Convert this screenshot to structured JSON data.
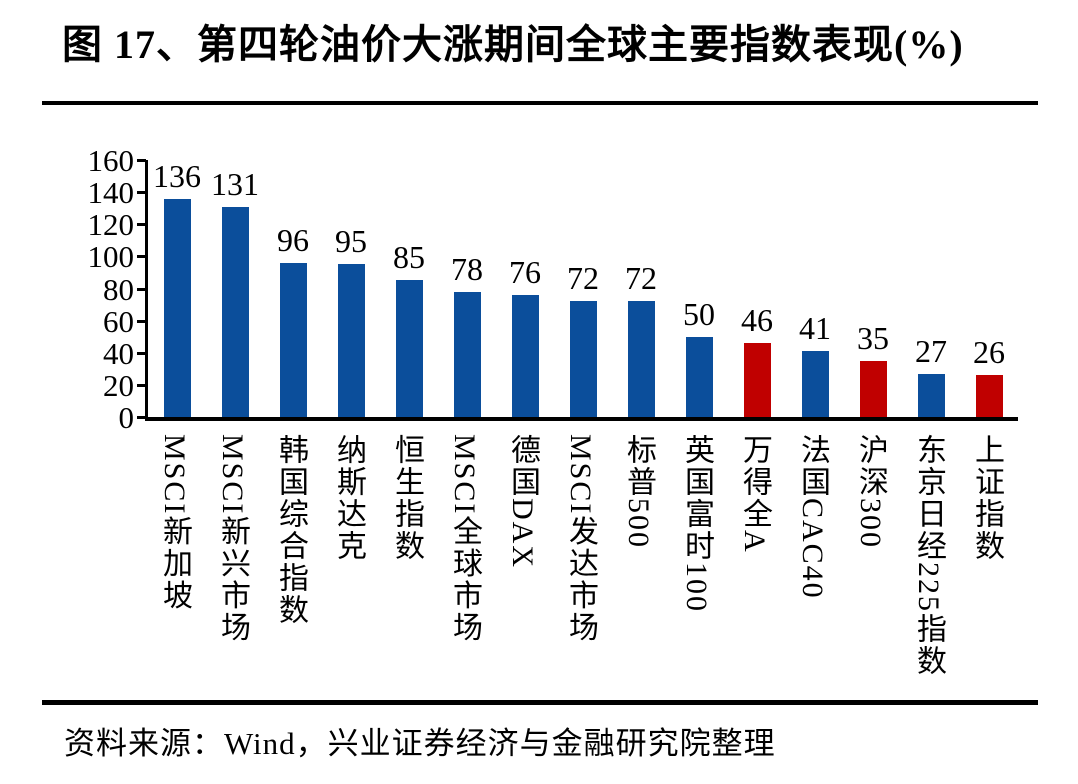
{
  "title": "图 17、第四轮油价大涨期间全球主要指数表现(%)",
  "source": "资料来源：Wind，兴业证券经济与金融研究院整理",
  "colors": {
    "bar_blue": "#0B4E9B",
    "bar_red": "#C00000",
    "rule_black": "#000000"
  },
  "chart_data": {
    "type": "bar",
    "title": "第四轮油价大涨期间全球主要指数表现(%)",
    "categories": [
      "MSCI新加坡",
      "MSCI新兴市场",
      "韩国综合指数",
      "纳斯达克",
      "恒生指数",
      "MSCI全球市场",
      "德国DAX",
      "MSCI发达市场",
      "标普500",
      "英国富时100",
      "万得全A",
      "法国CAC40",
      "沪深300",
      "东京日经225指数",
      "上证指数"
    ],
    "values": [
      136,
      131,
      96,
      95,
      85,
      78,
      76,
      72,
      72,
      50,
      46,
      41,
      35,
      27,
      26
    ],
    "bar_colors": [
      "#0B4E9B",
      "#0B4E9B",
      "#0B4E9B",
      "#0B4E9B",
      "#0B4E9B",
      "#0B4E9B",
      "#0B4E9B",
      "#0B4E9B",
      "#0B4E9B",
      "#0B4E9B",
      "#C00000",
      "#0B4E9B",
      "#C00000",
      "#0B4E9B",
      "#C00000"
    ],
    "xlabel": "",
    "ylabel": "",
    "ylim": [
      0,
      160
    ],
    "yticks": [
      0,
      20,
      40,
      60,
      80,
      100,
      120,
      140,
      160
    ],
    "grid": false,
    "legend_position": "none",
    "value_labels": true
  }
}
